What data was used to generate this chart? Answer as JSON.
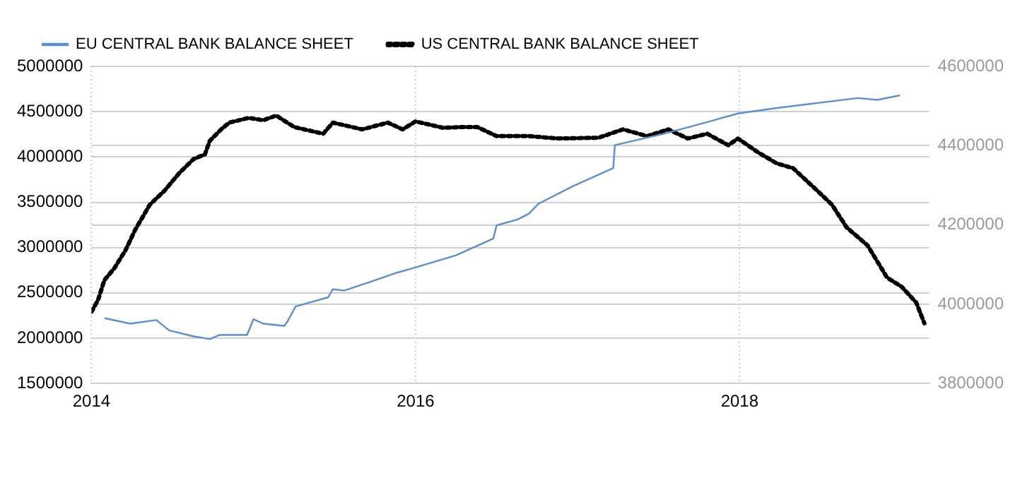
{
  "chart_data": {
    "type": "line",
    "legend": "top left",
    "grid": true,
    "xlim": [
      2014,
      2019.17
    ],
    "xticks": [
      2014,
      2016,
      2018
    ],
    "ylim": [
      1500000,
      5000000
    ],
    "yticks": [
      1500000,
      2000000,
      2500000,
      3000000,
      3500000,
      4000000,
      4500000,
      5000000
    ],
    "y2lim": [
      3800000,
      4600000
    ],
    "y2ticks": [
      3800000,
      4000000,
      4200000,
      4400000,
      4600000
    ],
    "series": [
      {
        "name": "EU CENTRAL BANK BALANCE SHEET",
        "color": "#5b8fd6",
        "line_style": "solid",
        "marker": "none",
        "x": [
          2014.08,
          2014.24,
          2014.4,
          2014.48,
          2014.63,
          2014.73,
          2014.79,
          2014.96,
          2015.0,
          2015.06,
          2015.19,
          2015.21,
          2015.26,
          2015.46,
          2015.49,
          2015.56,
          2015.71,
          2015.89,
          2016.0,
          2016.25,
          2016.48,
          2016.5,
          2016.63,
          2016.7,
          2016.76,
          2016.97,
          2017.22,
          2017.23,
          2017.53,
          2017.79,
          2017.99,
          2018.23,
          2018.73,
          2018.85,
          2018.99
        ],
        "values": [
          2220000,
          2160000,
          2200000,
          2085000,
          2020000,
          1990000,
          2035000,
          2035000,
          2210000,
          2160000,
          2135000,
          2185000,
          2350000,
          2450000,
          2540000,
          2525000,
          2615000,
          2725000,
          2780000,
          2915000,
          3100000,
          3245000,
          3310000,
          3374000,
          3485000,
          3676000,
          3877000,
          4130000,
          4255000,
          4380000,
          4480000,
          4540000,
          4650000,
          4630000,
          4680000
        ]
      },
      {
        "name": "US CENTRAL BANK BALANCE SHEET",
        "color": "#000000",
        "line_style": "dotted",
        "marker": "none",
        "axis": "y2",
        "x": [
          2014.0,
          2014.04,
          2014.08,
          2014.14,
          2014.21,
          2014.27,
          2014.36,
          2014.45,
          2014.54,
          2014.63,
          2014.7,
          2014.73,
          2014.8,
          2014.85,
          2014.97,
          2015.06,
          2015.14,
          2015.25,
          2015.43,
          2015.49,
          2015.67,
          2015.83,
          2015.92,
          2016.0,
          2016.17,
          2016.29,
          2016.38,
          2016.5,
          2016.7,
          2016.88,
          2017.13,
          2017.28,
          2017.43,
          2017.56,
          2017.68,
          2017.8,
          2017.93,
          2017.99,
          2018.11,
          2018.23,
          2018.33,
          2018.48,
          2018.57,
          2018.66,
          2018.79,
          2018.91,
          2019.0,
          2019.09,
          2019.14
        ],
        "values": [
          3981000,
          4010000,
          4061000,
          4090000,
          4136000,
          4188000,
          4251000,
          4286000,
          4330000,
          4366000,
          4378000,
          4412000,
          4441000,
          4458000,
          4470000,
          4464000,
          4476000,
          4447000,
          4430000,
          4458000,
          4441000,
          4458000,
          4441000,
          4461000,
          4445000,
          4447000,
          4447000,
          4424000,
          4424000,
          4418000,
          4420000,
          4441000,
          4424000,
          4441000,
          4418000,
          4430000,
          4401000,
          4418000,
          4384000,
          4355000,
          4343000,
          4286000,
          4251000,
          4194000,
          4148000,
          4067000,
          4044000,
          4004000,
          3952000
        ]
      }
    ]
  }
}
